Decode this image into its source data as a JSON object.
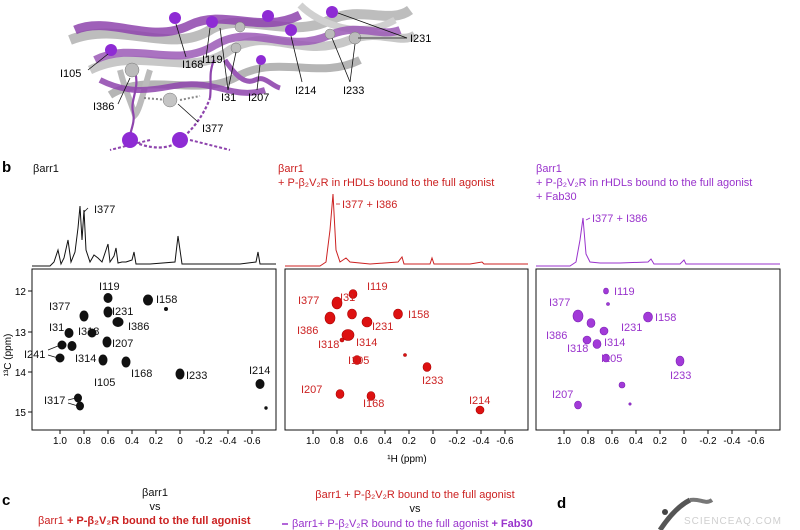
{
  "panel_a": {
    "labels": [
      "I105",
      "I168",
      "I119",
      "I31",
      "I207",
      "I214",
      "I233",
      "I231",
      "I386",
      "I377"
    ]
  },
  "panel_b": {
    "letter": "b",
    "spectra": [
      {
        "title_lines": [
          "βarr1"
        ],
        "peak_label": "I377",
        "color": "#111111",
        "peaks": [
          "I119",
          "I158",
          "I377",
          "I231",
          "I31",
          "I318",
          "I386",
          "I207",
          "I241",
          "I314",
          "I168",
          "I105",
          "I233",
          "I214",
          "I317"
        ]
      },
      {
        "title_lines": [
          "βarr1",
          "+ P-β₂V₂R in rHDLs bound to the full agonist"
        ],
        "peak_label": "I377 + I386",
        "color": "#cc2222",
        "peaks": [
          "I119",
          "I377",
          "I31",
          "I158",
          "I386",
          "I231",
          "I318",
          "I314",
          "I105",
          "I233",
          "I207",
          "I168",
          "I214"
        ]
      },
      {
        "title_lines": [
          "βarr1",
          "+ P-β₂V₂R in rHDLs bound to the full agonist",
          "+ Fab30"
        ],
        "peak_label": "I377 + I386",
        "color": "#9933cc",
        "peaks": [
          "I119",
          "I377",
          "I158",
          "I231",
          "I386",
          "I314",
          "I318",
          "I105",
          "I233",
          "I207"
        ]
      }
    ],
    "y_axis_label": "¹³C (ppm)",
    "y_ticks": [
      "12",
      "13",
      "14",
      "15"
    ],
    "x_axis_label": "¹H (ppm)",
    "x_ticks": [
      "1.0",
      "0.8",
      "0.6",
      "0.4",
      "0.2",
      "0",
      "-0.2",
      "-0.4",
      "-0.6"
    ]
  },
  "panel_c": {
    "letter": "c",
    "legend_left_top": "βarr1",
    "legend_left_vs": "vs",
    "legend_left_bottom_prefix": "βarr1",
    "legend_left_bottom_bold": " + P-β₂V₂R bound to the full agonist",
    "legend_right_top": "βarr1 + P-β₂V₂R bound to the full agonist",
    "legend_right_vs": "vs",
    "legend_right_bottom_prefix": "βarr1+ P-β₂V₂R bound to the full agonist",
    "legend_right_bottom_bold": " + Fab30"
  },
  "panel_d": {
    "letter": "d"
  },
  "watermark": "SCIENCEAQ.COM"
}
